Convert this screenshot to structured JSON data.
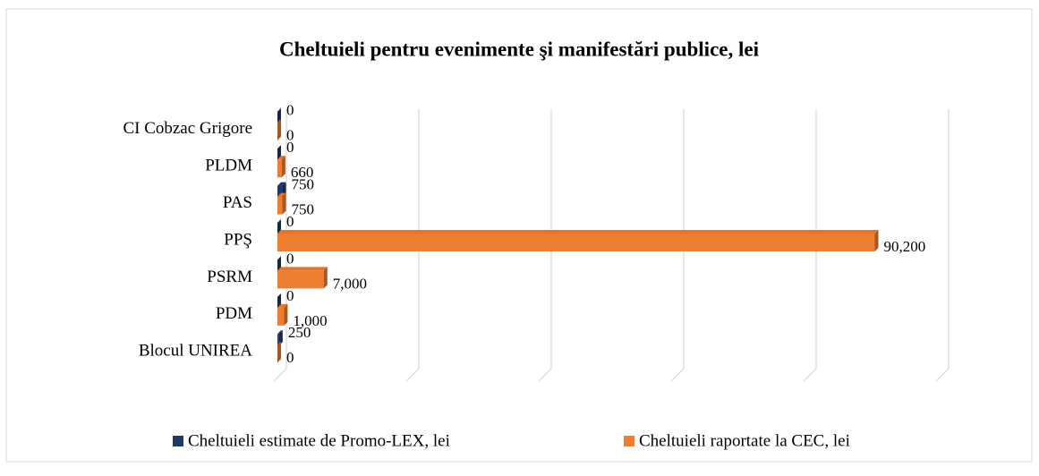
{
  "chart_data": {
    "type": "bar3d-horizontal",
    "title": "Cheltuieli pentru evenimente şi manifestări publice, lei",
    "categories": [
      "CI Cobzac Grigore",
      "PLDM",
      "PAS",
      "PPŞ",
      "PSRM",
      "PDM",
      "Blocul UNIREA"
    ],
    "series": [
      {
        "name": "Cheltuieli estimate de Promo-LEX, lei",
        "color": "#1f3864",
        "values": [
          0,
          0,
          750,
          0,
          0,
          0,
          250
        ],
        "value_labels": [
          "0",
          "0",
          "750",
          "0",
          "0",
          "0",
          "250"
        ]
      },
      {
        "name": "Cheltuieli raportate la CEC, lei",
        "color": "#ed7d31",
        "values": [
          0,
          660,
          750,
          90200,
          7000,
          1000,
          0
        ],
        "value_labels": [
          "0",
          "660",
          "750",
          "90,200",
          "7,000",
          "1,000",
          "0"
        ]
      }
    ],
    "xlim": [
      0,
      100000
    ],
    "xticks": [
      0,
      20000,
      40000,
      60000,
      80000,
      100000
    ],
    "grid": true
  }
}
